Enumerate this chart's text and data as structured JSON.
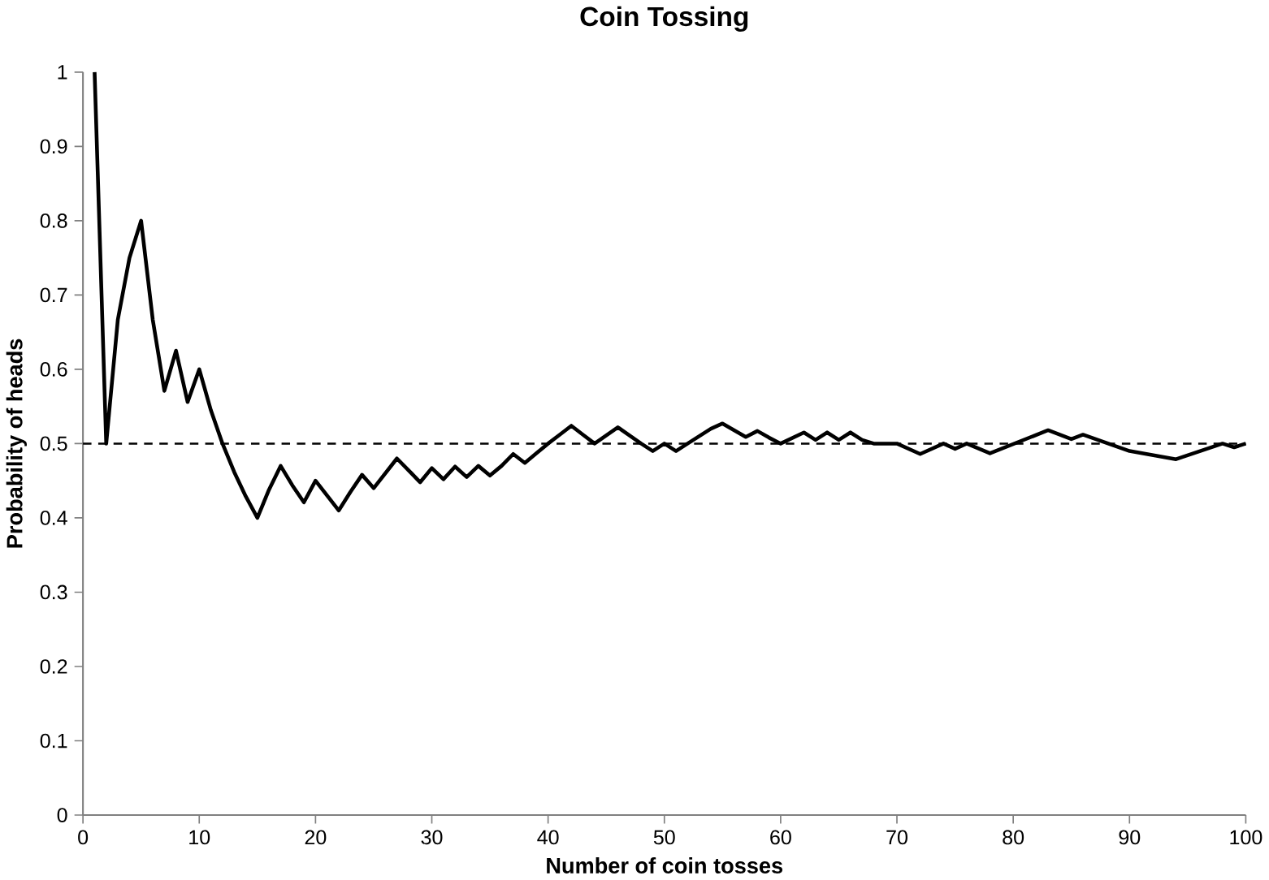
{
  "chart_data": {
    "type": "line",
    "title": "Coin Tossing",
    "xlabel": "Number of coin tosses",
    "ylabel": "Probability of heads",
    "x": [
      1,
      2,
      3,
      4,
      5,
      6,
      7,
      8,
      9,
      10,
      11,
      12,
      13,
      14,
      15,
      16,
      17,
      18,
      19,
      20,
      21,
      22,
      23,
      24,
      25,
      26,
      27,
      28,
      29,
      30,
      31,
      32,
      33,
      34,
      35,
      36,
      37,
      38,
      39,
      40,
      41,
      42,
      43,
      44,
      45,
      46,
      47,
      48,
      49,
      50,
      51,
      52,
      53,
      54,
      55,
      56,
      57,
      58,
      59,
      60,
      62,
      63,
      64,
      65,
      66,
      67,
      68,
      70,
      72,
      74,
      75,
      76,
      78,
      83,
      85,
      86,
      90,
      94,
      98,
      99,
      100
    ],
    "series": [
      {
        "color": "#000000",
        "values": [
          1,
          0.5,
          0.667,
          0.75,
          0.8,
          0.667,
          0.571,
          0.625,
          0.556,
          0.6,
          0.545,
          0.5,
          0.462,
          0.429,
          0.4,
          0.438,
          0.47,
          0.444,
          0.421,
          0.45,
          0.43,
          0.41,
          0.435,
          0.458,
          0.44,
          0.46,
          0.48,
          0.464,
          0.448,
          0.467,
          0.452,
          0.469,
          0.455,
          0.47,
          0.457,
          0.47,
          0.486,
          0.474,
          0.487,
          0.5,
          0.512,
          0.524,
          0.512,
          0.5,
          0.511,
          0.522,
          0.511,
          0.5,
          0.49,
          0.5,
          0.49,
          0.5,
          0.51,
          0.52,
          0.527,
          0.518,
          0.509,
          0.517,
          0.508,
          0.5,
          0.515,
          0.505,
          0.515,
          0.505,
          0.515,
          0.505,
          0.5,
          0.5,
          0.486,
          0.5,
          0.493,
          0.5,
          0.487,
          0.518,
          0.506,
          0.512,
          0.49,
          0.479,
          0.5,
          0.495,
          0.5
        ]
      }
    ],
    "xlim": [
      0,
      100
    ],
    "xticks": [
      0,
      10,
      20,
      30,
      40,
      50,
      60,
      70,
      80,
      90,
      100
    ],
    "ylim": [
      0,
      1
    ],
    "yticks": [
      0,
      0.1,
      0.2,
      0.3,
      0.4,
      0.5,
      0.6,
      0.7,
      0.8,
      0.9,
      1
    ],
    "ref_lines": [
      {
        "axis": "y",
        "value": 0.5,
        "color": "#000000",
        "line_style": "dashed"
      }
    ],
    "grid": false,
    "marker": "none",
    "line_style": "solid"
  }
}
